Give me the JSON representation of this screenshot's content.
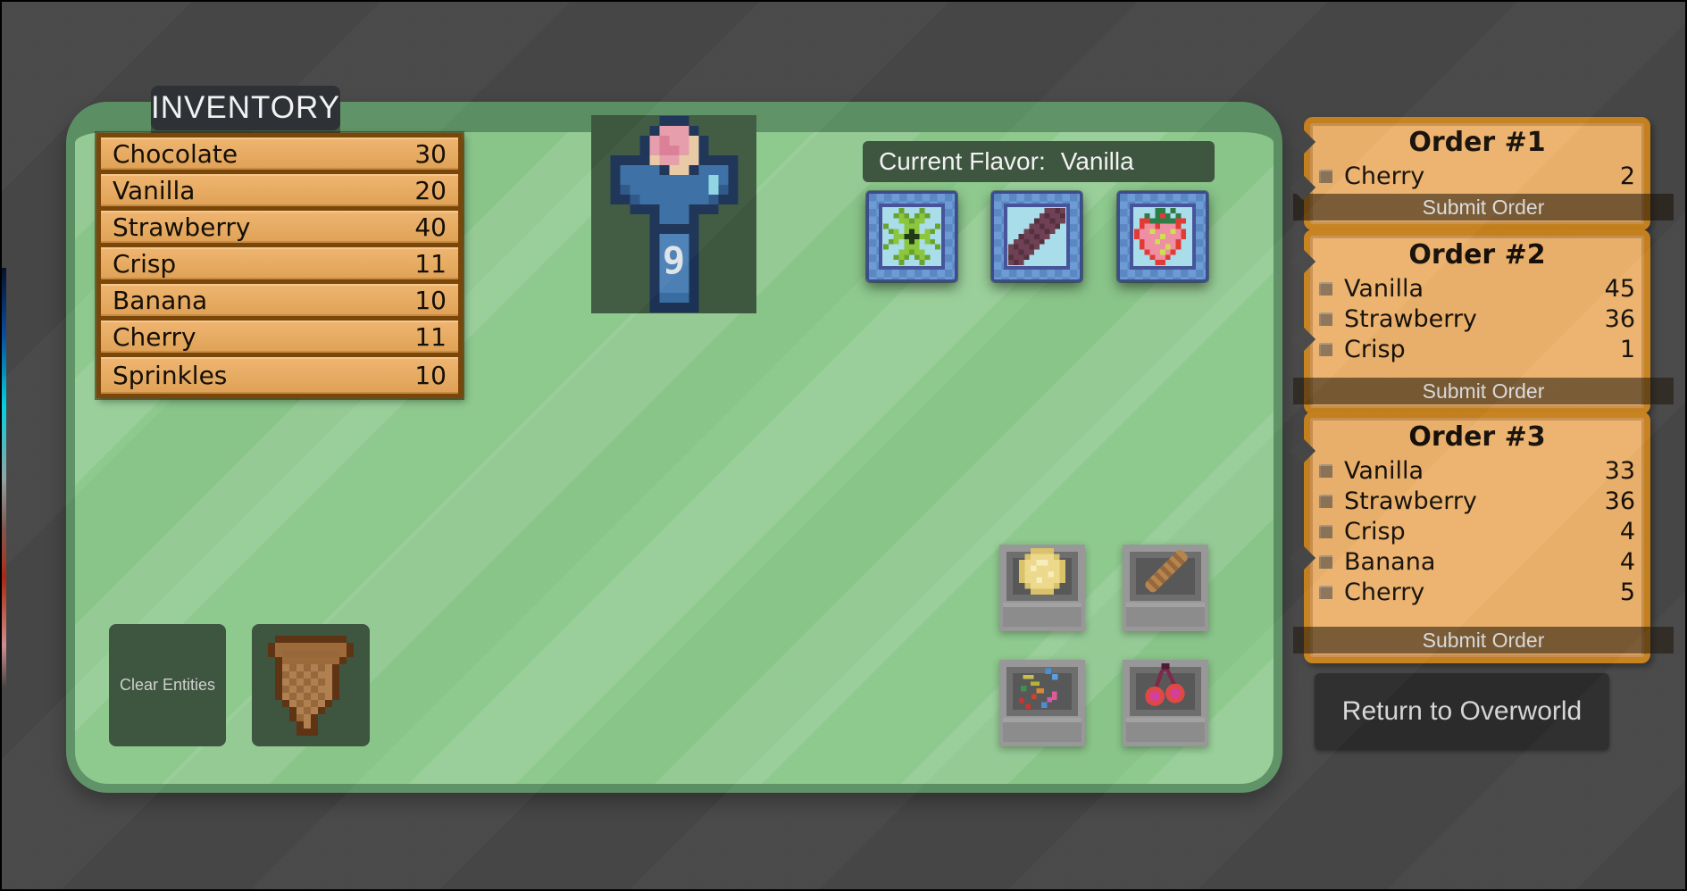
{
  "inventory": {
    "title": "INVENTORY",
    "items": [
      {
        "name": "Chocolate",
        "qty": "30"
      },
      {
        "name": "Vanilla",
        "qty": "20"
      },
      {
        "name": "Strawberry",
        "qty": "40"
      },
      {
        "name": "Crisp",
        "qty": "11"
      },
      {
        "name": "Banana",
        "qty": "10"
      },
      {
        "name": "Cherry",
        "qty": "11"
      },
      {
        "name": "Sprinkles",
        "qty": "10"
      }
    ]
  },
  "player": {
    "jersey_number": "9"
  },
  "flavor_panel": {
    "label": "Current Flavor:",
    "current": "Vanilla",
    "buttons": [
      {
        "icon": "mint-leaf"
      },
      {
        "icon": "chocolate-bar"
      },
      {
        "icon": "strawberry"
      }
    ]
  },
  "machines": [
    {
      "icon": "banana-slice"
    },
    {
      "icon": "crisp-stick"
    },
    {
      "icon": "sprinkles"
    },
    {
      "icon": "cherries"
    }
  ],
  "cone_slot": {
    "icon": "ice-cream-cone"
  },
  "actions": {
    "clear_entities": "Clear Entities",
    "return_to_overworld": "Return to Overworld"
  },
  "orders": [
    {
      "title": "Order #1",
      "submit_label": "Submit Order",
      "items": [
        {
          "name": "Cherry",
          "qty": "2"
        }
      ]
    },
    {
      "title": "Order #2",
      "submit_label": "Submit Order",
      "items": [
        {
          "name": "Vanilla",
          "qty": "45"
        },
        {
          "name": "Strawberry",
          "qty": "36"
        },
        {
          "name": "Crisp",
          "qty": "1"
        }
      ]
    },
    {
      "title": "Order #3",
      "submit_label": "Submit Order",
      "items": [
        {
          "name": "Vanilla",
          "qty": "33"
        },
        {
          "name": "Strawberry",
          "qty": "36"
        },
        {
          "name": "Crisp",
          "qty": "4"
        },
        {
          "name": "Banana",
          "qty": "4"
        },
        {
          "name": "Cherry",
          "qty": "5"
        }
      ]
    }
  ],
  "colors": {
    "screen_bg": "#474747",
    "board_green": "#8cc88c",
    "board_rim": "#5d9164",
    "panel_dark_green": "#3e553f",
    "wood_row": "#e8ab63",
    "wood_border": "#7b4708",
    "parchment": "#ecb26d",
    "parchment_border": "#c8821e",
    "label_dark": "#2e3237",
    "button_dark": "#2c2c2c"
  }
}
